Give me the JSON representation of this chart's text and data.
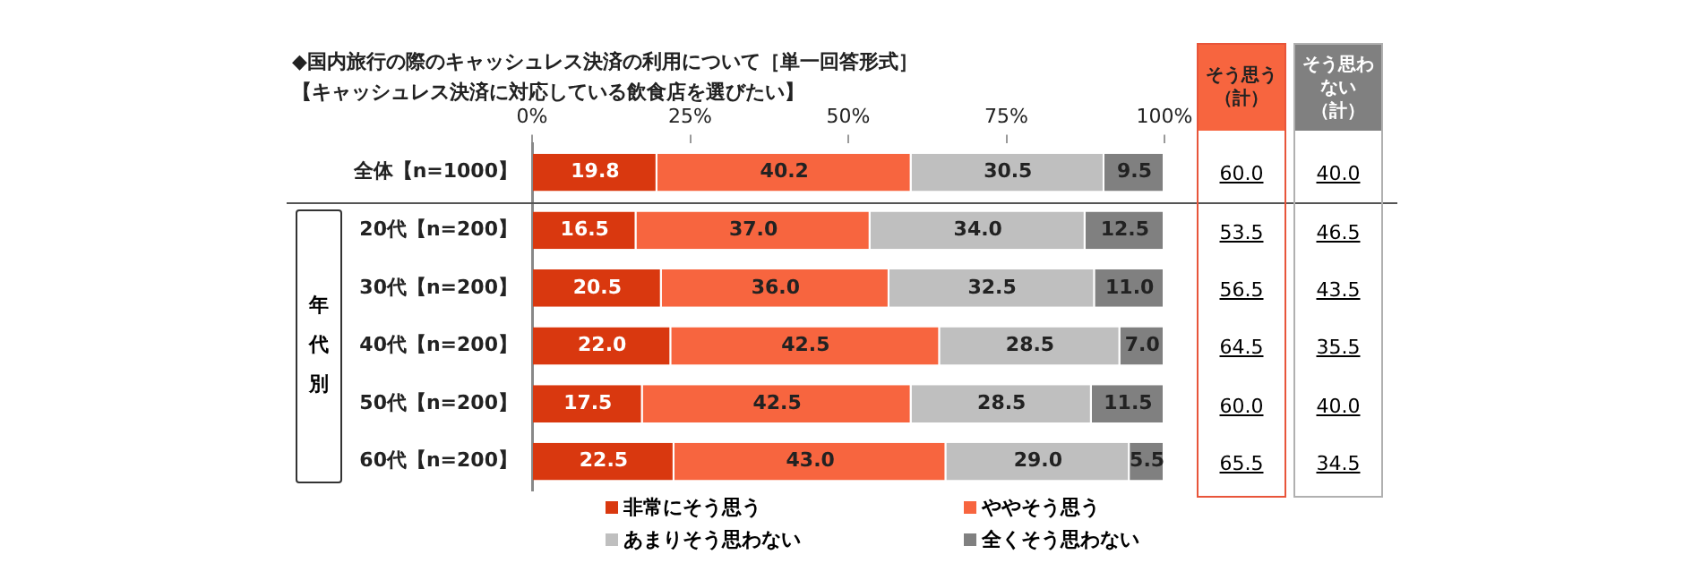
{
  "chart_data": {
    "type": "bar",
    "orientation": "horizontal",
    "stacked": true,
    "title": "◆国内旅行の際のキャッシュレス決済の利用について［単一回答形式］",
    "subtitle": "【キャッシュレス決済に対応している飲食店を選びたい】",
    "ylabel": "年代別",
    "categories": [
      "全体【n=1000】",
      "20代【n=200】",
      "30代【n=200】",
      "40代【n=200】",
      "50代【n=200】",
      "60代【n=200】"
    ],
    "series": [
      {
        "name": "非常にそう思う",
        "color": "#d9380f",
        "values": [
          19.8,
          16.5,
          20.5,
          22.0,
          17.5,
          22.5
        ]
      },
      {
        "name": "ややそう思う",
        "color": "#f7653f",
        "values": [
          40.2,
          37.0,
          36.0,
          42.5,
          42.5,
          43.0
        ]
      },
      {
        "name": "あまりそう思わない",
        "color": "#bfbfbf",
        "values": [
          30.5,
          34.0,
          32.5,
          28.5,
          28.5,
          29.0
        ]
      },
      {
        "name": "全くそう思わない",
        "color": "#808080",
        "values": [
          9.5,
          12.5,
          11.0,
          7.0,
          11.5,
          5.5
        ]
      }
    ],
    "xlim": [
      0,
      100
    ],
    "xticks": [
      {
        "value": 0,
        "label": "0%"
      },
      {
        "value": 25,
        "label": "25%"
      },
      {
        "value": 50,
        "label": "50%"
      },
      {
        "value": 75,
        "label": "75%"
      },
      {
        "value": 100,
        "label": "100%"
      }
    ],
    "value_labels": [
      [
        "19.8",
        "16.5",
        "20.5",
        "22.0",
        "17.5",
        "22.5"
      ],
      [
        "40.2",
        "37.0",
        "36.0",
        "42.5",
        "42.5",
        "43.0"
      ],
      [
        "30.5",
        "34.0",
        "32.5",
        "28.5",
        "28.5",
        "29.0"
      ],
      [
        "9.5",
        "12.5",
        "11.0",
        "7.0",
        "11.5",
        "5.5"
      ]
    ],
    "grid": false,
    "legend": "bottom",
    "annotations": [
      "そう思う（計）",
      "60.0",
      "53.5",
      "56.5",
      "64.5",
      "60.0",
      "65.5",
      "そう思わない（計）",
      "40.0",
      "46.5",
      "43.5",
      "35.5",
      "40.0",
      "34.5"
    ]
  }
}
